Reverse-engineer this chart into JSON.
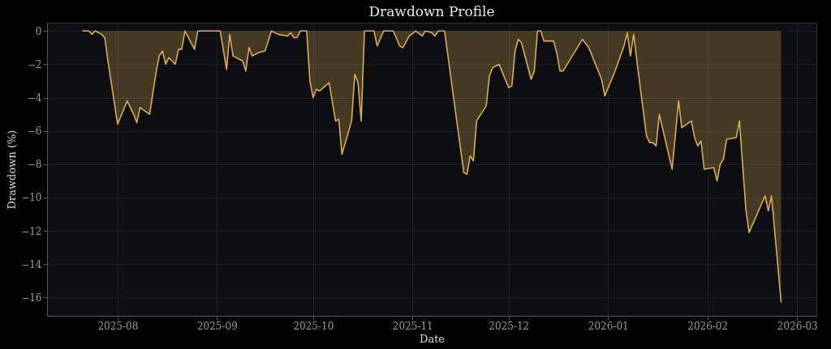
{
  "chart_data": {
    "type": "area",
    "title": "Drawdown Profile",
    "xlabel": "Date",
    "ylabel": "Drawdown (%)",
    "x": [
      "2025-07-21",
      "2025-07-23",
      "2025-07-24",
      "2025-07-25",
      "2025-07-27",
      "2025-07-28",
      "2025-07-29",
      "2025-08-01",
      "2025-08-04",
      "2025-08-06",
      "2025-08-07",
      "2025-08-08",
      "2025-08-11",
      "2025-08-13",
      "2025-08-14",
      "2025-08-15",
      "2025-08-16",
      "2025-08-17",
      "2025-08-19",
      "2025-08-20",
      "2025-08-21",
      "2025-08-22",
      "2025-08-25",
      "2025-08-26",
      "2025-09-02",
      "2025-09-04",
      "2025-09-05",
      "2025-09-06",
      "2025-09-09",
      "2025-09-10",
      "2025-09-11",
      "2025-09-12",
      "2025-09-14",
      "2025-09-16",
      "2025-09-18",
      "2025-09-20",
      "2025-09-23",
      "2025-09-24",
      "2025-09-25",
      "2025-09-26",
      "2025-09-27",
      "2025-09-29",
      "2025-09-30",
      "2025-10-01",
      "2025-10-02",
      "2025-10-03",
      "2025-10-06",
      "2025-10-08",
      "2025-10-09",
      "2025-10-10",
      "2025-10-13",
      "2025-10-14",
      "2025-10-15",
      "2025-10-16",
      "2025-10-17",
      "2025-10-20",
      "2025-10-21",
      "2025-10-23",
      "2025-10-26",
      "2025-10-28",
      "2025-10-29",
      "2025-10-31",
      "2025-11-02",
      "2025-11-04",
      "2025-11-05",
      "2025-11-07",
      "2025-11-08",
      "2025-11-09",
      "2025-11-11",
      "2025-11-17",
      "2025-11-18",
      "2025-11-19",
      "2025-11-20",
      "2025-11-21",
      "2025-11-24",
      "2025-11-25",
      "2025-11-26",
      "2025-11-28",
      "2025-12-01",
      "2025-12-02",
      "2025-12-03",
      "2025-12-04",
      "2025-12-05",
      "2025-12-08",
      "2025-12-09",
      "2025-12-10",
      "2025-12-11",
      "2025-12-12",
      "2025-12-15",
      "2025-12-16",
      "2025-12-17",
      "2025-12-18",
      "2025-12-24",
      "2025-12-26",
      "2025-12-30",
      "2025-12-31",
      "2026-01-03",
      "2026-01-06",
      "2026-01-07",
      "2026-01-08",
      "2026-01-09",
      "2026-01-10",
      "2026-01-13",
      "2026-01-14",
      "2026-01-15",
      "2026-01-16",
      "2026-01-17",
      "2026-01-21",
      "2026-01-23",
      "2026-01-24",
      "2026-01-27",
      "2026-01-28",
      "2026-01-29",
      "2026-01-30",
      "2026-01-31",
      "2026-02-03",
      "2026-02-04",
      "2026-02-05",
      "2026-02-06",
      "2026-02-07",
      "2026-02-10",
      "2026-02-11",
      "2026-02-13",
      "2026-02-14",
      "2026-02-19",
      "2026-02-20",
      "2026-02-21",
      "2026-02-24"
    ],
    "series": [
      {
        "color": "#d9ac55",
        "values": [
          0,
          0,
          -0.2,
          0,
          -0.2,
          -0.4,
          -1.8,
          -5.6,
          -4.2,
          -5.0,
          -5.5,
          -4.6,
          -5.0,
          -2.5,
          -1.5,
          -1.2,
          -2.0,
          -1.6,
          -2.0,
          -1.1,
          -1.1,
          0,
          -1.1,
          0,
          0,
          -2.3,
          -0.2,
          -1.5,
          -1.8,
          -2.4,
          -1.0,
          -1.5,
          -1.3,
          -1.2,
          0,
          -0.2,
          -0.3,
          -0.1,
          -0.4,
          -0.4,
          0,
          0,
          -3.0,
          -4.0,
          -3.5,
          -3.6,
          -3.1,
          -5.4,
          -5.3,
          -7.4,
          -5.4,
          -2.6,
          -3.1,
          -5.4,
          0,
          0,
          -0.9,
          0,
          0,
          -0.9,
          -1.0,
          -0.3,
          0,
          -0.3,
          0,
          -0.1,
          -0.3,
          0,
          0,
          -8.5,
          -8.6,
          -7.5,
          -7.8,
          -5.4,
          -4.5,
          -2.7,
          -2.2,
          -2.0,
          -3.4,
          -3.3,
          -1.2,
          -0.5,
          -0.7,
          -2.9,
          -2.4,
          0,
          0,
          -0.6,
          -0.6,
          -1.3,
          -2.4,
          -2.4,
          -0.5,
          -1.0,
          -2.9,
          -3.9,
          -2.5,
          -0.9,
          -0.1,
          -1.5,
          -0.2,
          -1.8,
          -6.3,
          -6.7,
          -6.7,
          -6.9,
          -5.0,
          -8.3,
          -4.2,
          -5.8,
          -5.4,
          -6.4,
          -6.9,
          -6.6,
          -8.3,
          -8.2,
          -9.0,
          -8.0,
          -7.7,
          -6.5,
          -6.4,
          -5.4,
          -10.7,
          -12.1,
          -9.9,
          -10.8,
          -9.9,
          -16.3
        ]
      }
    ],
    "xlim": [
      "2025-07-10",
      "2026-03-07"
    ],
    "xticks": [
      {
        "value": "2025-08-01",
        "label": "2025-08"
      },
      {
        "value": "2025-09-01",
        "label": "2025-09"
      },
      {
        "value": "2025-10-01",
        "label": "2025-10"
      },
      {
        "value": "2025-11-01",
        "label": "2025-11"
      },
      {
        "value": "2025-12-01",
        "label": "2025-12"
      },
      {
        "value": "2026-01-01",
        "label": "2026-01"
      },
      {
        "value": "2026-02-01",
        "label": "2026-02"
      },
      {
        "value": "2026-03-01",
        "label": "2026-03"
      }
    ],
    "ylim": [
      -17.1,
      0.5
    ],
    "yticks": [
      0,
      -2,
      -4,
      -6,
      -8,
      -10,
      -12,
      -14,
      -16
    ],
    "grid": true
  }
}
